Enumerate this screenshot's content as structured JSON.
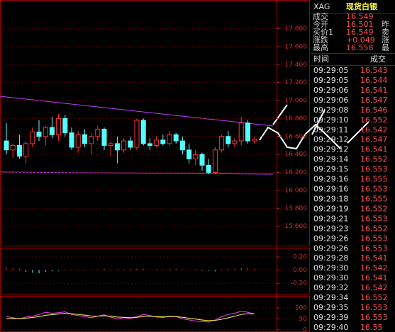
{
  "chart_data": [
    {
      "type": "candlestick",
      "up_color": "#ff3232",
      "down_color": "#54ffff",
      "open": [
        16.55,
        16.45,
        16.5,
        16.38,
        16.52,
        16.65,
        16.6,
        16.7,
        16.62,
        16.8,
        16.64,
        16.48,
        16.62,
        16.52,
        16.6,
        16.68,
        16.5,
        16.52,
        16.45,
        16.55,
        16.48,
        16.78,
        16.52,
        16.5,
        16.56,
        16.52,
        16.62,
        16.55,
        16.45,
        16.35,
        16.4,
        16.28,
        16.2,
        16.45,
        16.6,
        16.52,
        16.55,
        16.75,
        16.55
      ],
      "high": [
        16.75,
        16.52,
        16.62,
        16.55,
        16.7,
        16.78,
        16.72,
        16.82,
        16.85,
        16.84,
        16.7,
        16.66,
        16.68,
        16.64,
        16.72,
        16.7,
        16.55,
        16.6,
        16.58,
        16.6,
        16.8,
        16.8,
        16.58,
        16.6,
        16.62,
        16.66,
        16.64,
        16.6,
        16.52,
        16.45,
        16.42,
        16.35,
        16.48,
        16.62,
        16.66,
        16.58,
        16.82,
        16.78,
        16.6
      ],
      "low": [
        16.4,
        16.36,
        16.35,
        16.3,
        16.48,
        16.55,
        16.5,
        16.58,
        16.55,
        16.6,
        16.45,
        16.42,
        16.48,
        16.4,
        16.55,
        16.45,
        16.38,
        16.3,
        16.42,
        16.45,
        16.45,
        16.5,
        16.45,
        16.48,
        16.5,
        16.5,
        16.52,
        16.4,
        16.3,
        16.28,
        16.22,
        16.18,
        16.18,
        16.42,
        16.48,
        16.48,
        16.5,
        16.52,
        16.52
      ],
      "close": [
        16.45,
        16.5,
        16.38,
        16.52,
        16.65,
        16.6,
        16.7,
        16.62,
        16.8,
        16.64,
        16.48,
        16.62,
        16.52,
        16.6,
        16.68,
        16.5,
        16.52,
        16.45,
        16.55,
        16.48,
        16.78,
        16.52,
        16.5,
        16.56,
        16.52,
        16.62,
        16.55,
        16.45,
        16.35,
        16.4,
        16.28,
        16.2,
        16.45,
        16.6,
        16.52,
        16.55,
        16.75,
        16.55,
        16.57
      ],
      "ylim": [
        15.4,
        18.08
      ],
      "yticks": [
        {
          "value": 17.8,
          "label": "17.800"
        },
        {
          "value": 17.6,
          "label": "17.600"
        },
        {
          "value": 17.4,
          "label": "17.400"
        },
        {
          "value": 17.2,
          "label": "17.200"
        },
        {
          "value": 17.0,
          "label": "17.000"
        },
        {
          "value": 16.8,
          "label": "16.800"
        },
        {
          "value": 16.6,
          "label": "16.600"
        },
        {
          "value": 16.4,
          "label": "16.400"
        },
        {
          "value": 16.2,
          "label": "16.200"
        },
        {
          "value": 16.0,
          "label": "16.000"
        },
        {
          "value": 15.8,
          "label": "15.800"
        },
        {
          "value": 15.6,
          "label": "15.600"
        }
      ],
      "grid": true
    },
    {
      "type": "bar",
      "up_color": "#ff3232",
      "down_color": "#54ffff",
      "values": [
        0.04,
        0.03,
        0.02,
        -0.03,
        -0.04,
        -0.05,
        -0.03,
        -0.02,
        -0.01,
        0.01,
        0.01,
        0.01,
        0.01,
        0.01,
        0.01,
        0.02,
        0.01,
        0.01,
        0.01,
        0.02,
        0.02,
        0.02,
        0.01,
        0.01,
        0.01,
        0.02,
        0.02,
        0.01,
        0.01,
        0.01,
        -0.01,
        -0.01,
        -0.02,
        0.01,
        0.02,
        0.02,
        0.03,
        0.03,
        0.02
      ],
      "ylim": [
        -0.35,
        0.34
      ],
      "yticks": [
        {
          "value": 0.2,
          "label": "0.20"
        },
        {
          "value": 0,
          "label": "0.00"
        },
        {
          "value": -0.2,
          "label": "-0.20"
        }
      ],
      "grid": true
    },
    {
      "type": "line",
      "series": [
        {
          "color": "#ff40ff",
          "values": [
            60,
            55,
            50,
            58,
            62,
            70,
            80,
            75,
            78,
            82,
            70,
            65,
            60,
            55,
            62,
            68,
            58,
            50,
            55,
            52,
            60,
            70,
            65,
            58,
            56,
            62,
            60,
            50,
            45,
            40,
            38,
            35,
            45,
            60,
            70,
            75,
            85,
            80,
            72
          ]
        },
        {
          "color": "#ffff40",
          "values": [
            50,
            52,
            51,
            53,
            56,
            60,
            66,
            69,
            72,
            75,
            73,
            70,
            67,
            63,
            62,
            64,
            62,
            58,
            57,
            55,
            57,
            61,
            62,
            60,
            59,
            60,
            60,
            57,
            53,
            49,
            45,
            42,
            43,
            48,
            55,
            62,
            70,
            73,
            73
          ]
        }
      ],
      "ylim": [
        -10,
        148
      ],
      "yticks": [
        100,
        50,
        0
      ],
      "grid": true
    }
  ],
  "quote": {
    "symbol": "XAG",
    "name": "现货白银",
    "rows": [
      [
        "成交",
        "16.549"
      ],
      [
        "今开",
        "16.501",
        "昨"
      ],
      [
        "买价1",
        "16.549",
        "卖"
      ],
      [
        "涨跌",
        "+0.049",
        "涨"
      ],
      [
        "最高",
        "16.558",
        "最"
      ]
    ]
  },
  "ticks": {
    "header": [
      "时间",
      "成交"
    ],
    "rows": [
      [
        "09:29:05",
        "16.543"
      ],
      [
        "09:29:05",
        "16.544"
      ],
      [
        "09:29:06",
        "16.541"
      ],
      [
        "09:29:06",
        "16.547"
      ],
      [
        "09:29:08",
        "16.546"
      ],
      [
        "09:29:10",
        "16.552"
      ],
      [
        "09:29:11",
        "16.542"
      ],
      [
        "09:29:12",
        "16.547"
      ],
      [
        "09:29:12",
        "16.541"
      ],
      [
        "09:29:14",
        "16.552"
      ],
      [
        "09:29:15",
        "16.553"
      ],
      [
        "09:29:16",
        "16.555"
      ],
      [
        "09:29:16",
        "16.553"
      ],
      [
        "09:29:18",
        "16.555"
      ],
      [
        "09:29:19",
        "16.552"
      ],
      [
        "09:29:21",
        "16.553"
      ],
      [
        "09:29:23",
        "16.552"
      ],
      [
        "09:29:26",
        "16.553"
      ],
      [
        "09:29:26",
        "16.553"
      ],
      [
        "09:29:28",
        "16.541"
      ],
      [
        "09:29:30",
        "16.542"
      ],
      [
        "09:29:30",
        "16.541"
      ],
      [
        "09:29:32",
        "16.542"
      ],
      [
        "09:29:34",
        "16.552"
      ],
      [
        "09:29:35",
        "16.553"
      ],
      [
        "09:29:39",
        "16.553"
      ],
      [
        "09:29:40",
        "16.55"
      ]
    ]
  }
}
